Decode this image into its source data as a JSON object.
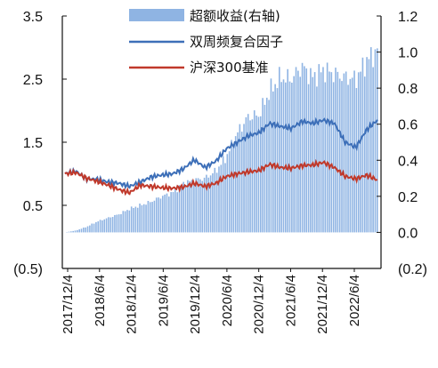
{
  "chart_data": {
    "type": "line",
    "title": "",
    "xlabel": "",
    "ylabel": "",
    "x_tick_labels": [
      "2017/12/4",
      "2018/6/4",
      "2018/12/4",
      "2019/6/4",
      "2019/12/4",
      "2020/6/4",
      "2020/12/4",
      "2021/6/4",
      "2021/12/4",
      "2022/6/4"
    ],
    "y_left_ticks": [
      "3.5",
      "2.5",
      "1.5",
      "0.5",
      "(0.5)"
    ],
    "y_left_range": [
      -0.5,
      3.5
    ],
    "y_right_ticks": [
      "1.2",
      "1.0",
      "0.8",
      "0.6",
      "0.4",
      "0.2",
      "0.0",
      "(0.2)"
    ],
    "y_right_range": [
      -0.2,
      1.2
    ],
    "grid": false,
    "legend_position": "top-right",
    "legend": [
      "超额收益(右轴)",
      "双周频复合因子",
      "沪深300基准"
    ],
    "colors": {
      "excess": "#8fb4e3",
      "factor": "#3d6fb8",
      "benchmark": "#c0392b"
    },
    "series": [
      {
        "name": "超额收益(右轴)",
        "type": "area",
        "axis": "right",
        "x": [
          "2017/12/4",
          "2018/2/4",
          "2018/4/4",
          "2018/6/4",
          "2018/8/4",
          "2018/10/4",
          "2018/12/4",
          "2019/2/4",
          "2019/4/4",
          "2019/6/4",
          "2019/8/4",
          "2019/10/4",
          "2019/12/4",
          "2020/2/4",
          "2020/4/4",
          "2020/6/4",
          "2020/8/4",
          "2020/10/4",
          "2020/12/4",
          "2021/2/4",
          "2021/4/4",
          "2021/6/4",
          "2021/8/4",
          "2021/10/4",
          "2021/12/4",
          "2022/2/4",
          "2022/4/4",
          "2022/6/4",
          "2022/8/4",
          "2022/10/4"
        ],
        "values": [
          0.0,
          0.01,
          0.03,
          0.06,
          0.08,
          0.1,
          0.13,
          0.15,
          0.17,
          0.2,
          0.22,
          0.27,
          0.29,
          0.3,
          0.34,
          0.42,
          0.55,
          0.64,
          0.65,
          0.78,
          0.86,
          0.85,
          0.92,
          0.86,
          0.9,
          0.88,
          0.86,
          0.85,
          0.95,
          1.01
        ]
      },
      {
        "name": "双周频复合因子",
        "type": "line",
        "axis": "left",
        "x": [
          "2017/12/4",
          "2018/2/4",
          "2018/4/4",
          "2018/6/4",
          "2018/8/4",
          "2018/10/4",
          "2018/12/4",
          "2019/2/4",
          "2019/4/4",
          "2019/6/4",
          "2019/8/4",
          "2019/10/4",
          "2019/12/4",
          "2020/2/4",
          "2020/4/4",
          "2020/6/4",
          "2020/8/4",
          "2020/10/4",
          "2020/12/4",
          "2021/2/4",
          "2021/4/4",
          "2021/6/4",
          "2021/8/4",
          "2021/10/4",
          "2021/12/4",
          "2022/2/4",
          "2022/4/4",
          "2022/6/4",
          "2022/8/4",
          "2022/10/4"
        ],
        "values": [
          1.0,
          1.04,
          0.92,
          0.91,
          0.87,
          0.85,
          0.8,
          0.87,
          0.95,
          0.98,
          1.0,
          1.08,
          1.22,
          1.1,
          1.2,
          1.4,
          1.5,
          1.6,
          1.65,
          1.8,
          1.75,
          1.72,
          1.83,
          1.8,
          1.85,
          1.8,
          1.5,
          1.42,
          1.7,
          1.85
        ]
      },
      {
        "name": "沪深300基准",
        "type": "line",
        "axis": "left",
        "x": [
          "2017/12/4",
          "2018/2/4",
          "2018/4/4",
          "2018/6/4",
          "2018/8/4",
          "2018/10/4",
          "2018/12/4",
          "2019/2/4",
          "2019/4/4",
          "2019/6/4",
          "2019/8/4",
          "2019/10/4",
          "2019/12/4",
          "2020/2/4",
          "2020/4/4",
          "2020/6/4",
          "2020/8/4",
          "2020/10/4",
          "2020/12/4",
          "2021/2/4",
          "2021/4/4",
          "2021/6/4",
          "2021/8/4",
          "2021/10/4",
          "2021/12/4",
          "2022/2/4",
          "2022/4/4",
          "2022/6/4",
          "2022/8/4",
          "2022/10/4"
        ],
        "values": [
          1.0,
          1.02,
          0.93,
          0.88,
          0.82,
          0.75,
          0.7,
          0.82,
          0.8,
          0.78,
          0.77,
          0.79,
          0.85,
          0.8,
          0.85,
          0.96,
          1.0,
          1.03,
          1.05,
          1.15,
          1.1,
          1.09,
          1.13,
          1.14,
          1.18,
          1.1,
          0.96,
          0.92,
          0.98,
          0.9
        ]
      }
    ]
  }
}
